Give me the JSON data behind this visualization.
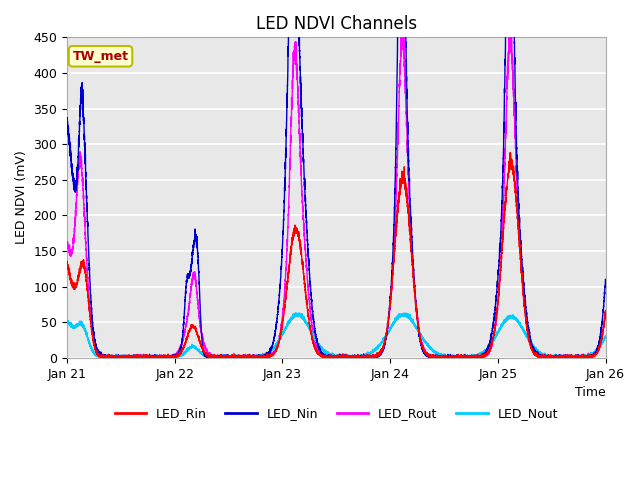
{
  "title": "LED NDVI Channels",
  "xlabel": "Time",
  "ylabel": "LED NDVI (mV)",
  "ylim": [
    0,
    450
  ],
  "plot_bg_color": "#e8e8e8",
  "line_colors": {
    "LED_Rin": "#ff0000",
    "LED_Nin": "#0000cc",
    "LED_Rout": "#ff00ff",
    "LED_Nout": "#00ccff"
  },
  "annotation_text": "TW_met",
  "annotation_color": "#aa0000",
  "annotation_bg": "#ffffcc",
  "annotation_border": "#bbbb00",
  "x_ticks": [
    0,
    1440,
    2880,
    4320,
    5760,
    7200
  ],
  "x_tick_labels": [
    "Jan 21",
    "Jan 22",
    "Jan 23",
    "Jan 24",
    "Jan 25",
    "Jan 26"
  ],
  "y_ticks": [
    0,
    50,
    100,
    150,
    200,
    250,
    300,
    350,
    400,
    450
  ]
}
